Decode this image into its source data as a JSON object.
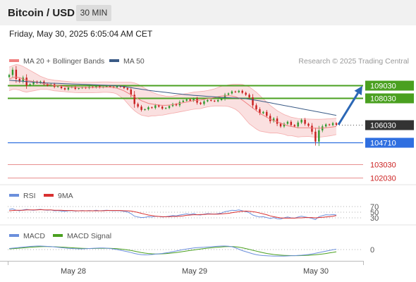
{
  "header": {
    "title": "Bitcoin / USD",
    "timeframe": "30 MIN",
    "datetime": "Friday, May 30, 2025 6:05:04 AM CET"
  },
  "colors": {
    "bollinger": "#f08080",
    "bollinger_fill": "#f5c6c6",
    "ma50": "#3b5b86",
    "resistance": "#4aa020",
    "pivot": "#2f6fe0",
    "support": "#e06a6a",
    "last_price": "#333333",
    "candle_up": "#2e9a2e",
    "candle_down": "#c81e1e",
    "arrow": "#2b67b5",
    "rsi": "#6b8fdc",
    "rsi_ma": "#d93030",
    "macd": "#6b8fdc",
    "macd_signal": "#4aa020"
  },
  "chart_data": [
    {
      "type": "candlestick",
      "legend": [
        {
          "label": "MA 20 + Bollinger Bands",
          "color": "#f08080"
        },
        {
          "label": "MA 50",
          "color": "#3b5b86"
        }
      ],
      "legend_position": "top-left",
      "copyright": "Research © 2025 Trading Central",
      "x_ticks": [
        "May 28",
        "May 29",
        "May 30"
      ],
      "ylim": [
        101800,
        110300
      ],
      "price_levels": [
        {
          "value": 109030,
          "label": "109030",
          "kind": "resistance"
        },
        {
          "value": 108030,
          "label": "108030",
          "kind": "resistance"
        },
        {
          "value": 106030,
          "label": "106030",
          "kind": "last"
        },
        {
          "value": 104710,
          "label": "104710",
          "kind": "pivot"
        },
        {
          "value": 103030,
          "label": "103030",
          "kind": "support"
        },
        {
          "value": 102030,
          "label": "102030",
          "kind": "support"
        }
      ],
      "close": [
        109800,
        110200,
        109500,
        109300,
        109600,
        109000,
        109100,
        109300,
        109200,
        109300,
        109100,
        109000,
        109100,
        108900,
        108950,
        108800,
        108700,
        108850,
        108900,
        108750,
        108800,
        108850,
        108800,
        108900,
        108850,
        108950,
        108850,
        108900,
        108950,
        108900,
        108850,
        108950,
        108900,
        108800,
        108700,
        108300,
        107600,
        107400,
        107150,
        107200,
        107350,
        107300,
        107500,
        107400,
        107250,
        107300,
        107450,
        107600,
        107500,
        107750,
        107850,
        107950,
        107850,
        108000,
        107700,
        107600,
        107800,
        107900,
        107850,
        107800,
        107900,
        108000,
        108300,
        108400,
        108550,
        108500,
        108600,
        108450,
        108300,
        108100,
        107500,
        107200,
        106900,
        107000,
        106700,
        106300,
        106500,
        106100,
        105900,
        106100,
        106250,
        106000,
        105900,
        106200,
        106400,
        106100,
        105950,
        105500,
        104750,
        105600,
        105900,
        106050,
        106000,
        106150,
        106030
      ],
      "ma20": [
        109500,
        109600,
        109650,
        109600,
        109500,
        109400,
        109350,
        109300,
        109250,
        109200,
        109150,
        109100,
        109050,
        109000,
        108980,
        108950,
        108930,
        108900,
        108880,
        108860,
        108850,
        108850,
        108850,
        108850,
        108850,
        108860,
        108870,
        108880,
        108880,
        108870,
        108850,
        108800,
        108700,
        108600,
        108450,
        108300,
        108150,
        108000,
        107850,
        107750,
        107650,
        107600,
        107550,
        107520,
        107500,
        107500,
        107520,
        107550,
        107600,
        107650,
        107700,
        107750,
        107800,
        107850,
        107880,
        107900,
        107950,
        108000,
        108050,
        108100,
        108150,
        108200,
        108220,
        108230,
        108200,
        108150,
        108050,
        107900,
        107700,
        107500,
        107300,
        107100,
        106900,
        106750,
        106600,
        106450,
        106350,
        106250,
        106150,
        106050,
        105950,
        105900,
        105850,
        105800,
        105800,
        105800,
        105800,
        105780,
        105760,
        105760,
        105780,
        105800,
        105830,
        105860,
        105900
      ],
      "bb_upper": [
        110400,
        110500,
        110600,
        110550,
        110450,
        110300,
        110150,
        110000,
        109850,
        109700,
        109600,
        109500,
        109450,
        109400,
        109380,
        109350,
        109330,
        109300,
        109280,
        109260,
        109250,
        109250,
        109250,
        109250,
        109250,
        109260,
        109270,
        109280,
        109280,
        109270,
        109260,
        109250,
        109250,
        109250,
        109250,
        109250,
        109200,
        109100,
        108950,
        108800,
        108650,
        108500,
        108400,
        108300,
        108250,
        108200,
        108180,
        108200,
        108250,
        108300,
        108350,
        108400,
        108450,
        108500,
        108530,
        108550,
        108580,
        108620,
        108680,
        108750,
        108850,
        108950,
        109000,
        109050,
        109080,
        109100,
        109100,
        109080,
        109000,
        108900,
        108700,
        108500,
        108250,
        108000,
        107750,
        107500,
        107300,
        107100,
        106950,
        106800,
        106700,
        106600,
        106550,
        106500,
        106480,
        106470,
        106460,
        106450,
        106440,
        106440,
        106450,
        106460,
        106480,
        106500,
        106520
      ],
      "bb_lower": [
        108600,
        108700,
        108700,
        108650,
        108550,
        108500,
        108550,
        108600,
        108650,
        108700,
        108700,
        108700,
        108650,
        108600,
        108580,
        108550,
        108530,
        108500,
        108480,
        108460,
        108450,
        108450,
        108450,
        108450,
        108450,
        108460,
        108470,
        108480,
        108480,
        108470,
        108440,
        108350,
        108150,
        107950,
        107650,
        107350,
        107100,
        106900,
        106750,
        106700,
        106650,
        106700,
        106700,
        106740,
        106750,
        106800,
        106860,
        106900,
        106950,
        107000,
        107050,
        107100,
        107150,
        107200,
        107230,
        107250,
        107320,
        107380,
        107420,
        107450,
        107450,
        107450,
        107440,
        107410,
        107320,
        107200,
        107000,
        106720,
        106400,
        106100,
        105900,
        105700,
        105550,
        105500,
        105450,
        105400,
        105400,
        105400,
        105350,
        105300,
        105200,
        105200,
        105150,
        105100,
        105120,
        105130,
        105140,
        105110,
        105080,
        105080,
        105110,
        105140,
        105180,
        105220,
        105280
      ],
      "ma50": [
        109400,
        109380,
        109360,
        109340,
        109320,
        109300,
        109280,
        109260,
        109240,
        109220,
        109200,
        109190,
        109180,
        109170,
        109160,
        109150,
        109140,
        109130,
        109120,
        109110,
        109100,
        109090,
        109080,
        109070,
        109060,
        109050,
        109040,
        109030,
        109020,
        109010,
        109000,
        108980,
        108950,
        108920,
        108880,
        108840,
        108800,
        108760,
        108720,
        108680,
        108640,
        108600,
        108570,
        108540,
        108510,
        108480,
        108450,
        108420,
        108390,
        108360,
        108330,
        108300,
        108280,
        108260,
        108240,
        108220,
        108200,
        108180,
        108160,
        108140,
        108120,
        108100,
        108090,
        108080,
        108070,
        108060,
        108050,
        108030,
        108000,
        107960,
        107920,
        107880,
        107840,
        107790,
        107740,
        107690,
        107640,
        107590,
        107540,
        107490,
        107440,
        107390,
        107340,
        107290,
        107240,
        107190,
        107140,
        107090,
        107040,
        106990,
        106940,
        106890,
        106840,
        106790,
        106740
      ]
    },
    {
      "type": "line",
      "legend": [
        {
          "label": "RSI",
          "color": "#6b8fdc"
        },
        {
          "label": "9MA",
          "color": "#d93030"
        }
      ],
      "y_ticks": [
        "70",
        "50",
        "30"
      ],
      "ylim": [
        20,
        80
      ],
      "series": [
        {
          "name": "RSI",
          "values": [
            60,
            62,
            57,
            55,
            58,
            60,
            58,
            57,
            59,
            60,
            58,
            57,
            58,
            55,
            56,
            54,
            53,
            55,
            56,
            54,
            55,
            56,
            55,
            56,
            55,
            57,
            55,
            56,
            57,
            56,
            55,
            56,
            55,
            53,
            51,
            45,
            36,
            33,
            31,
            32,
            34,
            33,
            36,
            35,
            33,
            34,
            36,
            38,
            37,
            40,
            42,
            44,
            42,
            45,
            41,
            40,
            43,
            45,
            44,
            43,
            45,
            47,
            52,
            54,
            57,
            56,
            58,
            55,
            52,
            48,
            40,
            36,
            33,
            34,
            31,
            28,
            31,
            27,
            26,
            30,
            33,
            30,
            29,
            33,
            36,
            33,
            31,
            28,
            24,
            34,
            38,
            41,
            40,
            42,
            40
          ]
        },
        {
          "name": "9MA",
          "values": [
            55,
            56,
            57,
            57,
            57,
            58,
            58,
            58,
            58,
            59,
            58,
            58,
            58,
            57,
            57,
            57,
            56,
            56,
            56,
            55,
            55,
            55,
            55,
            55,
            55,
            55,
            55,
            55,
            56,
            56,
            56,
            56,
            56,
            55,
            55,
            54,
            52,
            49,
            46,
            43,
            40,
            38,
            36,
            35,
            34,
            34,
            34,
            35,
            35,
            36,
            37,
            39,
            40,
            41,
            41,
            42,
            42,
            43,
            43,
            43,
            43,
            44,
            45,
            46,
            48,
            50,
            52,
            53,
            54,
            53,
            52,
            50,
            47,
            44,
            41,
            37,
            34,
            32,
            30,
            29,
            29,
            29,
            29,
            30,
            30,
            31,
            31,
            31,
            30,
            31,
            32,
            33,
            34,
            36,
            38
          ]
        }
      ]
    },
    {
      "type": "line",
      "legend": [
        {
          "label": "MACD",
          "color": "#6b8fdc"
        },
        {
          "label": "MACD Signal",
          "color": "#4aa020"
        }
      ],
      "y_ticks": [
        "0"
      ],
      "ylim": [
        -1.2,
        1.2
      ],
      "series": [
        {
          "name": "MACD",
          "values": [
            0.15,
            0.2,
            0.25,
            0.3,
            0.35,
            0.4,
            0.45,
            0.48,
            0.5,
            0.5,
            0.48,
            0.45,
            0.42,
            0.38,
            0.33,
            0.28,
            0.22,
            0.18,
            0.15,
            0.12,
            0.1,
            0.1,
            0.12,
            0.15,
            0.18,
            0.2,
            0.22,
            0.22,
            0.2,
            0.15,
            0.08,
            0,
            -0.1,
            -0.2,
            -0.3,
            -0.42,
            -0.55,
            -0.65,
            -0.72,
            -0.75,
            -0.74,
            -0.7,
            -0.65,
            -0.6,
            -0.55,
            -0.48,
            -0.4,
            -0.3,
            -0.2,
            -0.1,
            0,
            0.08,
            0.15,
            0.22,
            0.28,
            0.3,
            0.32,
            0.36,
            0.4,
            0.44,
            0.48,
            0.5,
            0.5,
            0.48,
            0.4,
            0.25,
            0.05,
            -0.15,
            -0.3,
            -0.45,
            -0.6,
            -0.72,
            -0.8,
            -0.85,
            -0.88,
            -0.9,
            -0.92,
            -0.93,
            -0.93,
            -0.92,
            -0.9,
            -0.88,
            -0.86,
            -0.83,
            -0.8,
            -0.75,
            -0.7,
            -0.62,
            -0.52,
            -0.42,
            -0.32,
            -0.22,
            -0.12,
            -0.03,
            0.05
          ]
        },
        {
          "name": "MACD Signal",
          "values": [
            0.1,
            0.13,
            0.16,
            0.2,
            0.24,
            0.28,
            0.32,
            0.36,
            0.39,
            0.41,
            0.42,
            0.42,
            0.41,
            0.4,
            0.38,
            0.35,
            0.32,
            0.29,
            0.26,
            0.23,
            0.2,
            0.18,
            0.16,
            0.15,
            0.15,
            0.16,
            0.17,
            0.18,
            0.18,
            0.17,
            0.15,
            0.12,
            0.08,
            0.02,
            -0.05,
            -0.13,
            -0.22,
            -0.32,
            -0.42,
            -0.5,
            -0.56,
            -0.6,
            -0.62,
            -0.62,
            -0.6,
            -0.57,
            -0.53,
            -0.48,
            -0.42,
            -0.35,
            -0.28,
            -0.2,
            -0.13,
            -0.06,
            0.01,
            0.08,
            0.14,
            0.2,
            0.25,
            0.3,
            0.34,
            0.38,
            0.41,
            0.43,
            0.43,
            0.4,
            0.34,
            0.25,
            0.14,
            0.03,
            -0.1,
            -0.22,
            -0.34,
            -0.45,
            -0.55,
            -0.63,
            -0.7,
            -0.75,
            -0.79,
            -0.82,
            -0.84,
            -0.85,
            -0.86,
            -0.86,
            -0.85,
            -0.83,
            -0.81,
            -0.78,
            -0.74,
            -0.69,
            -0.63,
            -0.56,
            -0.48,
            -0.4,
            -0.31
          ]
        }
      ]
    }
  ]
}
